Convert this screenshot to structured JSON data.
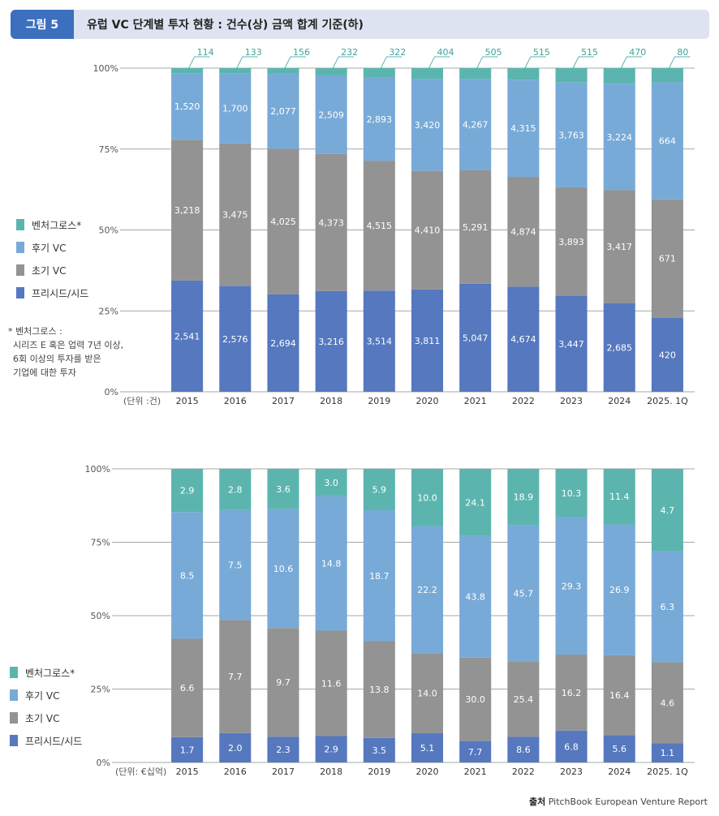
{
  "header": {
    "badge": "그림 5",
    "title": "유럽 VC 단계별 투자 현황 : 건수(상) 금액 합계 기준(하)"
  },
  "legend_items": [
    {
      "label": "벤처그로스*",
      "color": "#5bb5ae"
    },
    {
      "label": "후기 VC",
      "color": "#78aad7"
    },
    {
      "label": "초기 VC",
      "color": "#939393"
    },
    {
      "label": "프리시드/시드",
      "color": "#5578bf"
    }
  ],
  "note": [
    "* 벤처그로스 :",
    "시리즈 E 혹은 업력 7년 이상,",
    "6회 이상의 투자를 받은",
    "기업에 대한 투자"
  ],
  "source": {
    "label": "출처",
    "text": "PitchBook European Venture Report"
  },
  "chart_data": [
    {
      "type": "bar",
      "stacked": "percent",
      "unit_label": "(단위 :건)",
      "ytick_labels": [
        "0%",
        "25%",
        "50%",
        "75%",
        "100%"
      ],
      "categories": [
        "2015",
        "2016",
        "2017",
        "2018",
        "2019",
        "2020",
        "2021",
        "2022",
        "2023",
        "2024",
        "2025. 1Q"
      ],
      "series": [
        {
          "name": "프리시드/시드",
          "values": [
            2541,
            2576,
            2694,
            3216,
            3514,
            3811,
            5047,
            4674,
            3447,
            2685,
            420
          ],
          "labels": [
            "2,541",
            "2,576",
            "2,694",
            "3,216",
            "3,514",
            "3,811",
            "5,047",
            "4,674",
            "3,447",
            "2,685",
            "420"
          ]
        },
        {
          "name": "초기 VC",
          "values": [
            3218,
            3475,
            4025,
            4373,
            4515,
            4410,
            5291,
            4874,
            3893,
            3417,
            671
          ],
          "labels": [
            "3,218",
            "3,475",
            "4,025",
            "4,373",
            "4,515",
            "4,410",
            "5,291",
            "4,874",
            "3,893",
            "3,417",
            "671"
          ]
        },
        {
          "name": "후기 VC",
          "values": [
            1520,
            1700,
            2077,
            2509,
            2893,
            3420,
            4267,
            4315,
            3763,
            3224,
            664
          ],
          "labels": [
            "1,520",
            "1,700",
            "2,077",
            "2,509",
            "2,893",
            "3,420",
            "4,267",
            "4,315",
            "3,763",
            "3,224",
            "664"
          ]
        },
        {
          "name": "벤처그로스*",
          "values": [
            114,
            133,
            156,
            232,
            322,
            404,
            505,
            515,
            515,
            470,
            80
          ],
          "labels": [
            "114",
            "133",
            "156",
            "232",
            "322",
            "404",
            "505",
            "515",
            "515",
            "470",
            "80"
          ]
        }
      ]
    },
    {
      "type": "bar",
      "stacked": "percent",
      "unit_label": "(단위: €십억)",
      "ytick_labels": [
        "0%",
        "25%",
        "50%",
        "75%",
        "100%"
      ],
      "categories": [
        "2015",
        "2016",
        "2017",
        "2018",
        "2019",
        "2020",
        "2021",
        "2022",
        "2023",
        "2024",
        "2025. 1Q"
      ],
      "series": [
        {
          "name": "프리시드/시드",
          "values": [
            1.7,
            2.0,
            2.3,
            2.9,
            3.5,
            5.1,
            7.7,
            8.6,
            6.8,
            5.6,
            1.1
          ],
          "labels": [
            "1.7",
            "2.0",
            "2.3",
            "2.9",
            "3.5",
            "5.1",
            "7.7",
            "8.6",
            "6.8",
            "5.6",
            "1.1"
          ]
        },
        {
          "name": "초기 VC",
          "values": [
            6.6,
            7.7,
            9.7,
            11.6,
            13.8,
            14.0,
            30.0,
            25.4,
            16.2,
            16.4,
            4.6
          ],
          "labels": [
            "6.6",
            "7.7",
            "9.7",
            "11.6",
            "13.8",
            "14.0",
            "30.0",
            "25.4",
            "16.2",
            "16.4",
            "4.6"
          ]
        },
        {
          "name": "후기 VC",
          "values": [
            8.5,
            7.5,
            10.6,
            14.8,
            18.7,
            22.2,
            43.8,
            45.7,
            29.3,
            26.9,
            6.3
          ],
          "labels": [
            "8.5",
            "7.5",
            "10.6",
            "14.8",
            "18.7",
            "22.2",
            "43.8",
            "45.7",
            "29.3",
            "26.9",
            "6.3"
          ]
        },
        {
          "name": "벤처그로스*",
          "values": [
            2.9,
            2.8,
            3.6,
            3.0,
            5.9,
            10.0,
            24.1,
            18.9,
            10.3,
            11.4,
            4.7
          ],
          "labels": [
            "2.9",
            "2.8",
            "3.6",
            "3.0",
            "5.9",
            "10.0",
            "24.1",
            "18.9",
            "10.3",
            "11.4",
            "4.7"
          ]
        }
      ]
    }
  ]
}
